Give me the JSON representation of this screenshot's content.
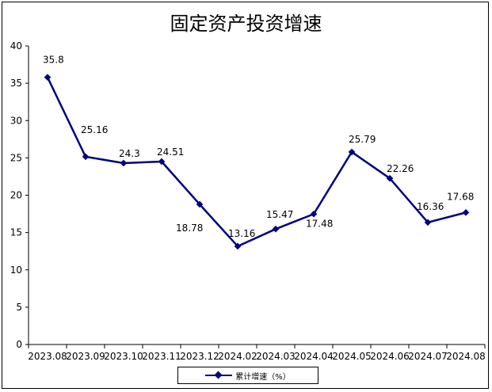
{
  "chart_data": {
    "type": "line",
    "title": "固定资产投资增速",
    "categories": [
      "2023.08",
      "2023.09",
      "2023.10",
      "2023.11",
      "2023.12",
      "2024.02",
      "2024.03",
      "2024.04",
      "2024.05",
      "2024.06",
      "2024.07",
      "2024.08"
    ],
    "series": [
      {
        "name": "累计增速（%）",
        "values": [
          35.8,
          25.16,
          24.3,
          24.51,
          18.78,
          13.16,
          15.47,
          17.48,
          25.79,
          22.26,
          16.36,
          17.68
        ],
        "color": "#000080",
        "marker": "diamond"
      }
    ],
    "data_labels": [
      "35.8",
      "25.16",
      "24.3",
      "24.51",
      "18.78",
      "13.16",
      "15.47",
      "17.48",
      "25.79",
      "22.26",
      "16.36",
      "17.68"
    ],
    "xlabel": "",
    "ylabel": "",
    "ylim": [
      0,
      40
    ],
    "yticks": [
      0,
      5,
      10,
      15,
      20,
      25,
      30,
      35,
      40
    ],
    "grid": false,
    "legend_position": "bottom"
  }
}
